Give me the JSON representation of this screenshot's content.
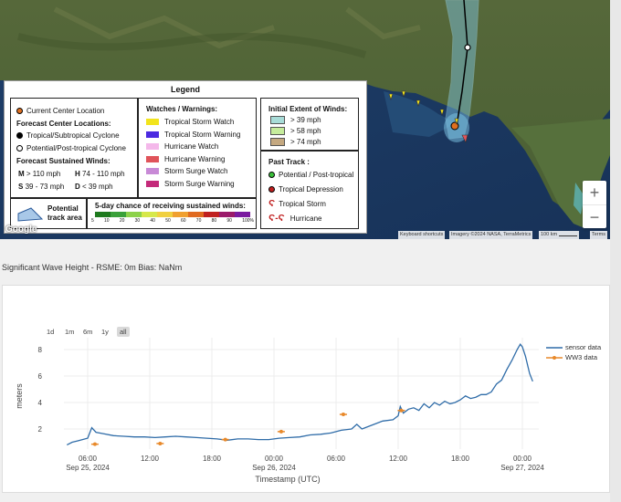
{
  "map": {
    "legend": {
      "title": "Legend",
      "current_center": "Current Center Location",
      "forecast_centers_heading": "Forecast Center Locations:",
      "tropical_cyclone": "Tropical/Subtropical Cyclone",
      "post_tropical": "Potential/Post-tropical Cyclone",
      "forecast_winds_heading": "Forecast Sustained Winds:",
      "wind_m": "M",
      "wind_m_val": "> 110 mph",
      "wind_h": "H",
      "wind_h_val": "74 - 110 mph",
      "wind_s": "S",
      "wind_s_val": "39 - 73 mph",
      "wind_d": "D",
      "wind_d_val": "< 39 mph",
      "watches_heading": "Watches / Warnings:",
      "watches": [
        {
          "label": "Tropical Storm Watch",
          "color": "#f2e41d"
        },
        {
          "label": "Tropical Storm Warning",
          "color": "#4b2ae0"
        },
        {
          "label": "Hurricane Watch",
          "color": "#f4b8ea"
        },
        {
          "label": "Hurricane Warning",
          "color": "#e0545a"
        },
        {
          "label": "Storm Surge Watch",
          "color": "#c88ad6"
        },
        {
          "label": "Storm Surge Warning",
          "color": "#c42a7a"
        }
      ],
      "initial_winds_heading": "Initial Extent of Winds:",
      "initial_winds": [
        {
          "label": "> 39 mph",
          "color": "#a8dcd8"
        },
        {
          "label": "> 58 mph",
          "color": "#c6ec9c"
        },
        {
          "label": "> 74 mph",
          "color": "#c4a880"
        }
      ],
      "past_track_heading": "Past Track :",
      "past_track": [
        {
          "label": "Potential / Post-tropical",
          "icon": "green-circle-icon"
        },
        {
          "label": "Tropical Depression",
          "icon": "red-circle-icon"
        },
        {
          "label": "Tropical Storm",
          "icon": "tropical-storm-icon"
        },
        {
          "label": "Hurricane",
          "icon": "hurricane-icon"
        }
      ],
      "potential_track": "Potential\ntrack area",
      "potential_track_1": "Potential",
      "potential_track_2": "track area",
      "five_day_heading": "5-day chance of receiving sustained winds:",
      "five_day_ticks": [
        "5",
        "10",
        "20",
        "30",
        "40",
        "50",
        "60",
        "70",
        "80",
        "90",
        "100%"
      ],
      "five_day_colors": [
        "#1e7a1e",
        "#3aa13a",
        "#8cd24a",
        "#d6e84a",
        "#f0d040",
        "#f0a030",
        "#e06a20",
        "#c02020",
        "#9a1a6a",
        "#7a1aa0"
      ]
    },
    "google_logo": "Google",
    "attribution": {
      "shortcuts": "Keyboard shortcuts",
      "imagery": "Imagery ©2024 NASA, TerraMetrics",
      "scale": "100 km",
      "terms": "Terms"
    },
    "zoom_in": "+",
    "zoom_out": "−"
  },
  "plot": {
    "title": "Significant Wave Height - RSME: 0m Bias: NaNm",
    "range_buttons": [
      {
        "label": "1d",
        "active": false
      },
      {
        "label": "1m",
        "active": false
      },
      {
        "label": "6m",
        "active": false
      },
      {
        "label": "1y",
        "active": false
      },
      {
        "label": "all",
        "active": true
      }
    ],
    "legend": {
      "sensor": "sensor data",
      "ww3": "WW3 data"
    }
  },
  "chart_data": {
    "type": "line",
    "xlabel": "Timestamp (UTC)",
    "ylabel": "meters",
    "ylim": [
      0.2,
      9.2
    ],
    "xlim_hours": [
      0,
      48
    ],
    "x_ticks": [
      {
        "h": 6,
        "label": "06:00",
        "sub": "Sep 25, 2024"
      },
      {
        "h": 12,
        "label": "12:00",
        "sub": ""
      },
      {
        "h": 18,
        "label": "18:00",
        "sub": ""
      },
      {
        "h": 24,
        "label": "00:00",
        "sub": "Sep 26, 2024"
      },
      {
        "h": 30,
        "label": "06:00",
        "sub": ""
      },
      {
        "h": 36,
        "label": "12:00",
        "sub": ""
      },
      {
        "h": 42,
        "label": "18:00",
        "sub": ""
      },
      {
        "h": 48,
        "label": "00:00",
        "sub": "Sep 27, 2024"
      }
    ],
    "y_ticks": [
      2,
      4,
      6,
      8
    ],
    "grid": true,
    "legend_position": "top-right",
    "series": [
      {
        "name": "sensor data",
        "color": "#2f6ca8",
        "marker": "none",
        "points": [
          [
            4.0,
            0.8
          ],
          [
            4.5,
            1.0
          ],
          [
            5.0,
            1.1
          ],
          [
            5.5,
            1.2
          ],
          [
            6.0,
            1.3
          ],
          [
            6.4,
            2.1
          ],
          [
            6.8,
            1.75
          ],
          [
            7.5,
            1.65
          ],
          [
            8.5,
            1.5
          ],
          [
            9.5,
            1.45
          ],
          [
            10.5,
            1.4
          ],
          [
            11.5,
            1.4
          ],
          [
            12.5,
            1.35
          ],
          [
            13.5,
            1.4
          ],
          [
            14.5,
            1.45
          ],
          [
            15.5,
            1.4
          ],
          [
            16.5,
            1.35
          ],
          [
            17.5,
            1.3
          ],
          [
            18.5,
            1.25
          ],
          [
            19.5,
            1.15
          ],
          [
            20.5,
            1.25
          ],
          [
            21.5,
            1.25
          ],
          [
            22.5,
            1.2
          ],
          [
            23.5,
            1.2
          ],
          [
            24.5,
            1.3
          ],
          [
            25.5,
            1.35
          ],
          [
            26.5,
            1.4
          ],
          [
            27.5,
            1.55
          ],
          [
            28.5,
            1.6
          ],
          [
            29.5,
            1.7
          ],
          [
            30.5,
            1.9
          ],
          [
            31.5,
            2.0
          ],
          [
            32.0,
            2.35
          ],
          [
            32.5,
            2.0
          ],
          [
            33.5,
            2.3
          ],
          [
            34.5,
            2.6
          ],
          [
            35.5,
            2.7
          ],
          [
            36.0,
            3.0
          ],
          [
            36.2,
            3.7
          ],
          [
            36.5,
            3.2
          ],
          [
            37.0,
            3.5
          ],
          [
            37.5,
            3.6
          ],
          [
            38.0,
            3.4
          ],
          [
            38.5,
            3.9
          ],
          [
            39.0,
            3.6
          ],
          [
            39.5,
            4.0
          ],
          [
            40.0,
            3.8
          ],
          [
            40.5,
            4.1
          ],
          [
            41.0,
            3.9
          ],
          [
            41.5,
            4.0
          ],
          [
            42.0,
            4.2
          ],
          [
            42.5,
            4.5
          ],
          [
            43.0,
            4.3
          ],
          [
            43.5,
            4.4
          ],
          [
            44.0,
            4.6
          ],
          [
            44.5,
            4.6
          ],
          [
            45.0,
            4.8
          ],
          [
            45.5,
            5.4
          ],
          [
            46.0,
            5.7
          ],
          [
            46.5,
            6.5
          ],
          [
            47.0,
            7.2
          ],
          [
            47.5,
            8.0
          ],
          [
            47.8,
            8.4
          ],
          [
            48.0,
            8.2
          ],
          [
            48.3,
            7.5
          ],
          [
            48.7,
            6.2
          ],
          [
            49.0,
            5.6
          ]
        ]
      },
      {
        "name": "WW3 data",
        "color": "#e8892a",
        "marker": "circle",
        "points": [
          [
            6.7,
            0.85
          ],
          [
            13.0,
            0.9
          ],
          [
            19.3,
            1.2
          ],
          [
            24.7,
            1.8
          ],
          [
            30.7,
            3.1
          ],
          [
            36.3,
            3.4
          ]
        ]
      }
    ]
  }
}
